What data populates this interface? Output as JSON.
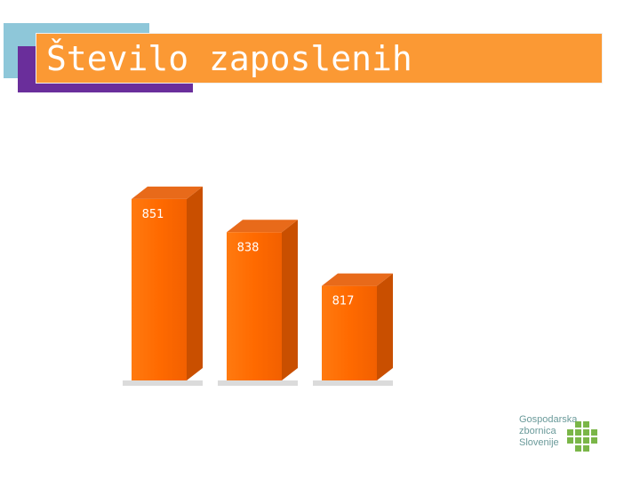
{
  "title": "Število zaposlenih",
  "chart_data": {
    "type": "bar",
    "categories": [
      "",
      "",
      ""
    ],
    "values": [
      851,
      838,
      817
    ],
    "data_labels": [
      "851",
      "838",
      "817"
    ],
    "title": "",
    "xlabel": "",
    "ylabel": "",
    "ylim": [
      780,
      860
    ],
    "grid": false,
    "legend": "none",
    "bar_color": "#ff6a00",
    "bar_side_color": "#c94f00",
    "bar_top_color": "#e86a1a"
  },
  "logo": {
    "lines": [
      "Gospodarska",
      "zbornica",
      "Slovenije"
    ],
    "color": "#6a9a9a",
    "accent": "#7ab648"
  },
  "colors": {
    "title_bar": "#fb9934",
    "deco_blue": "#8ec7d9",
    "deco_purple": "#6a2e9b"
  }
}
